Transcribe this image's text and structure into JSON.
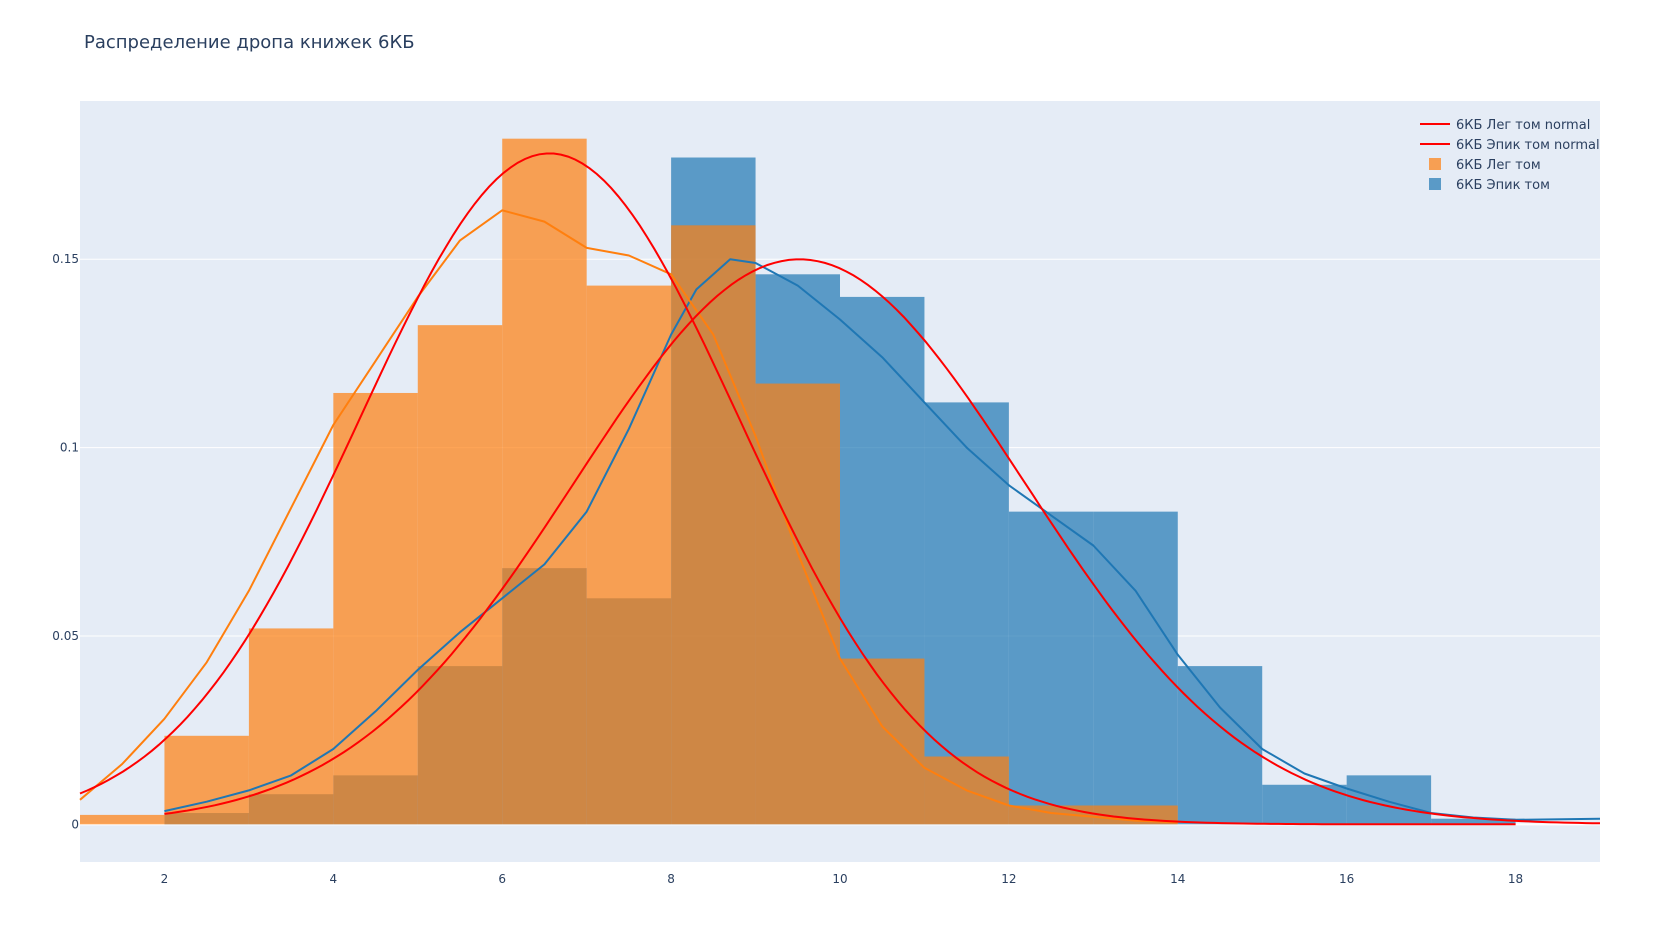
{
  "chart_data": {
    "type": "bar",
    "title": "Распределение дропа книжек 6КБ",
    "xlabel": "",
    "ylabel": "",
    "xlim": [
      1,
      19
    ],
    "ylim": [
      -0.01,
      0.192
    ],
    "x_ticks": [
      2,
      4,
      6,
      8,
      10,
      12,
      14,
      16,
      18
    ],
    "y_ticks": [
      0,
      0.05,
      0.1,
      0.15
    ],
    "y_tick_labels": [
      "0",
      "0.05",
      "0.1",
      "0.15"
    ],
    "grid": true,
    "legend_position": "top-right",
    "bin_width": 1,
    "histograms": [
      {
        "name": "6КБ Эпик том",
        "color": "#1f77b4",
        "bins": [
          {
            "x0": 2,
            "value": 0.003
          },
          {
            "x0": 3,
            "value": 0.008
          },
          {
            "x0": 4,
            "value": 0.013
          },
          {
            "x0": 5,
            "value": 0.042
          },
          {
            "x0": 6,
            "value": 0.068
          },
          {
            "x0": 7,
            "value": 0.06
          },
          {
            "x0": 8,
            "value": 0.177
          },
          {
            "x0": 9,
            "value": 0.146
          },
          {
            "x0": 10,
            "value": 0.14
          },
          {
            "x0": 11,
            "value": 0.112
          },
          {
            "x0": 12,
            "value": 0.083
          },
          {
            "x0": 13,
            "value": 0.083
          },
          {
            "x0": 14,
            "value": 0.042
          },
          {
            "x0": 15,
            "value": 0.0105
          },
          {
            "x0": 16,
            "value": 0.013
          },
          {
            "x0": 17,
            "value": 0.0015
          }
        ]
      },
      {
        "name": "6КБ Лег том",
        "color": "#ff7f0e",
        "bins": [
          {
            "x0": 1,
            "value": 0.0025
          },
          {
            "x0": 2,
            "value": 0.0235
          },
          {
            "x0": 3,
            "value": 0.052
          },
          {
            "x0": 4,
            "value": 0.1145
          },
          {
            "x0": 5,
            "value": 0.1325
          },
          {
            "x0": 6,
            "value": 0.182
          },
          {
            "x0": 7,
            "value": 0.143
          },
          {
            "x0": 8,
            "value": 0.159
          },
          {
            "x0": 9,
            "value": 0.117
          },
          {
            "x0": 10,
            "value": 0.044
          },
          {
            "x0": 11,
            "value": 0.018
          },
          {
            "x0": 12,
            "value": 0.005
          },
          {
            "x0": 13,
            "value": 0.005
          },
          {
            "x0": 14,
            "value": 0.0
          },
          {
            "x0": 15,
            "value": 0.0
          },
          {
            "x0": 16,
            "value": 0.0
          },
          {
            "x0": 17,
            "value": 0.0
          }
        ]
      }
    ],
    "kde_curves": [
      {
        "name": "",
        "color": "#1f77b4",
        "x": [
          2,
          2.5,
          3,
          3.5,
          4,
          4.5,
          5,
          5.5,
          6,
          6.5,
          7,
          7.5,
          8,
          8.3,
          8.7,
          9,
          9.5,
          10,
          10.5,
          11,
          11.5,
          12,
          12.5,
          13,
          13.5,
          14,
          14.5,
          15,
          15.5,
          16,
          16.5,
          17,
          17.5,
          18,
          19
        ],
        "y": [
          0.0035,
          0.006,
          0.009,
          0.013,
          0.02,
          0.03,
          0.041,
          0.051,
          0.06,
          0.069,
          0.083,
          0.105,
          0.13,
          0.142,
          0.15,
          0.149,
          0.143,
          0.134,
          0.124,
          0.112,
          0.1,
          0.09,
          0.082,
          0.074,
          0.062,
          0.045,
          0.031,
          0.02,
          0.0135,
          0.0095,
          0.006,
          0.003,
          0.0018,
          0.0012,
          0.0015
        ]
      },
      {
        "name": "",
        "color": "#ff7f0e",
        "x": [
          1,
          1.5,
          2,
          2.5,
          3,
          3.5,
          4,
          4.5,
          5,
          5.5,
          6,
          6.5,
          7,
          7.5,
          8,
          8.5,
          9,
          9.5,
          10,
          10.5,
          11,
          11.5,
          12,
          12.5,
          13,
          13.5,
          14
        ],
        "y": [
          0.0065,
          0.016,
          0.028,
          0.043,
          0.062,
          0.084,
          0.106,
          0.123,
          0.14,
          0.155,
          0.163,
          0.16,
          0.153,
          0.151,
          0.146,
          0.13,
          0.103,
          0.072,
          0.044,
          0.026,
          0.015,
          0.009,
          0.005,
          0.003,
          0.002,
          0.001,
          0.0005
        ]
      }
    ],
    "normal_curves": [
      {
        "name": "6КБ Лег том normal",
        "color": "#ff0000",
        "mean": 6.56,
        "sd": 2.24,
        "x_range": [
          1,
          18
        ]
      },
      {
        "name": "6КБ Эпик том normal",
        "color": "#ff0000",
        "mean": 9.52,
        "sd": 2.66,
        "x_range": [
          2,
          19
        ]
      }
    ],
    "legend": [
      {
        "name": "6КБ Лег том normal",
        "type": "line",
        "color": "#ff0000"
      },
      {
        "name": "6КБ Эпик том normal",
        "type": "line",
        "color": "#ff0000"
      },
      {
        "name": "6КБ Лег том",
        "type": "box",
        "color": "#ff7f0e"
      },
      {
        "name": "6КБ Эпик том",
        "type": "box",
        "color": "#1f77b4"
      }
    ]
  }
}
